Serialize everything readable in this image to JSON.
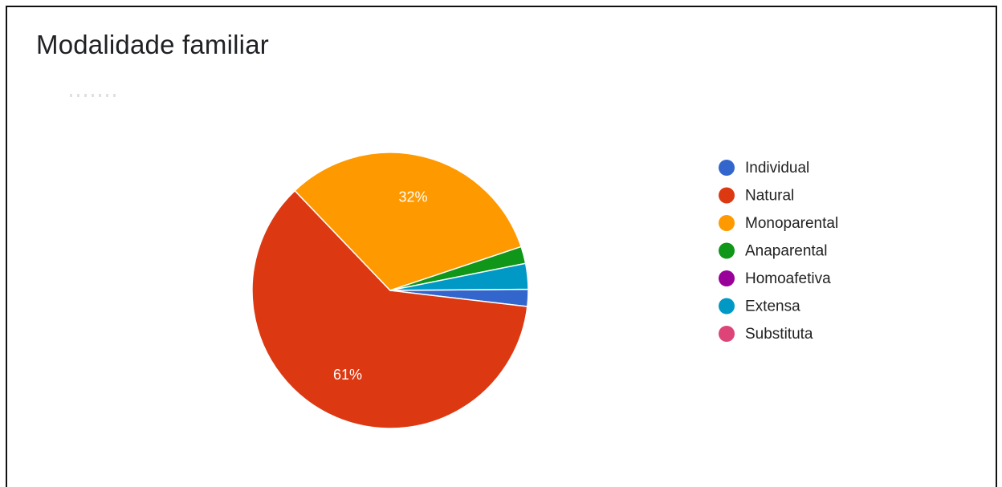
{
  "chart_data": {
    "type": "pie",
    "title": "Modalidade familiar",
    "categories": [
      "Individual",
      "Natural",
      "Monoparental",
      "Anaparental",
      "Homoafetiva",
      "Extensa",
      "Substituta"
    ],
    "values": [
      2,
      61,
      32,
      2,
      0,
      3,
      0
    ],
    "data_labels": [
      "",
      "61%",
      "32%",
      "",
      "",
      "",
      ""
    ],
    "colors": [
      "#3366cc",
      "#dc3912",
      "#ff9900",
      "#109618",
      "#990099",
      "#0099c6",
      "#dd4477"
    ],
    "legend_position": "right"
  }
}
